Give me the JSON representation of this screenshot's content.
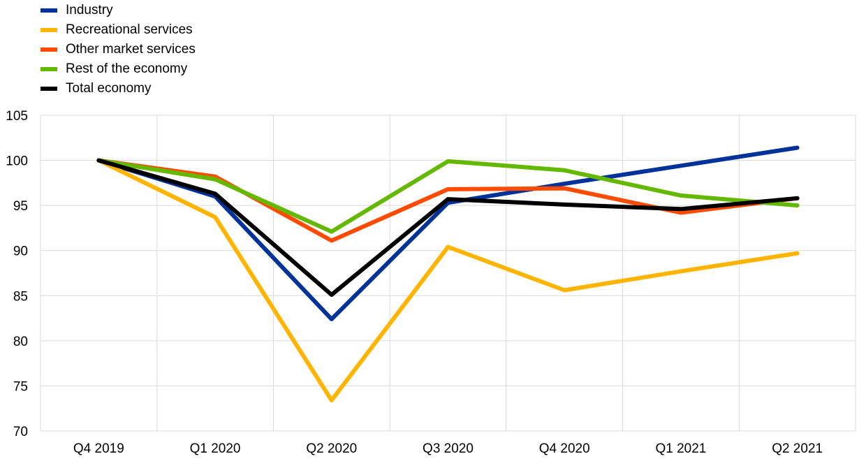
{
  "chart_data": {
    "type": "line",
    "title": "",
    "xlabel": "",
    "ylabel": "",
    "categories": [
      "Q4 2019",
      "Q1 2020",
      "Q2 2020",
      "Q3 2020",
      "Q4 2020",
      "Q1 2021",
      "Q2 2021"
    ],
    "ylim": [
      70,
      105
    ],
    "yticks": [
      70,
      75,
      80,
      85,
      90,
      95,
      100,
      105
    ],
    "grid": true,
    "legend_position": "top-left",
    "series": [
      {
        "name": "Industry",
        "color": "#003299",
        "values": [
          100,
          96.0,
          82.4,
          95.3,
          97.4,
          99.4,
          101.4
        ]
      },
      {
        "name": "Recreational services",
        "color": "#FFB400",
        "values": [
          100,
          93.7,
          73.4,
          90.4,
          85.6,
          87.7,
          89.7
        ]
      },
      {
        "name": "Other market services",
        "color": "#FF4B00",
        "values": [
          100,
          98.2,
          91.1,
          96.8,
          96.9,
          94.2,
          95.8
        ]
      },
      {
        "name": "Rest of the economy",
        "color": "#65B800",
        "values": [
          100,
          97.9,
          92.1,
          99.9,
          98.9,
          96.1,
          95.0
        ]
      },
      {
        "name": "Total economy",
        "color": "#000000",
        "values": [
          100,
          96.3,
          85.1,
          95.7,
          95.1,
          94.6,
          95.8
        ]
      }
    ]
  }
}
